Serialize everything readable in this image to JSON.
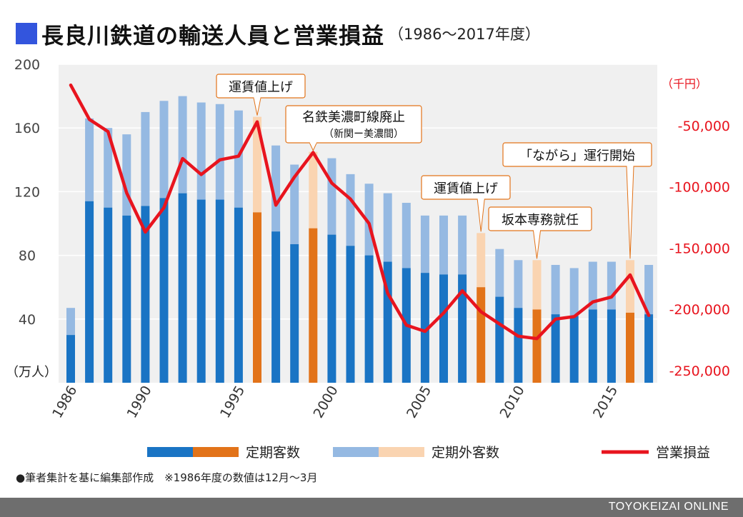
{
  "title": {
    "main": "長良川鉄道の輸送人員と営業損益",
    "sub": "（1986～2017年度）"
  },
  "chart_data": {
    "type": "bar",
    "x": [
      1986,
      1987,
      1988,
      1989,
      1990,
      1991,
      1992,
      1993,
      1994,
      1995,
      1996,
      1997,
      1998,
      1999,
      2000,
      2001,
      2002,
      2003,
      2004,
      2005,
      2006,
      2007,
      2008,
      2009,
      2010,
      2011,
      2012,
      2013,
      2014,
      2015,
      2016,
      2017
    ],
    "x_ticks": [
      "1986",
      "1990",
      "1995",
      "2000",
      "2005",
      "2010",
      "2015"
    ],
    "series": [
      {
        "name": "定期客数",
        "kind": "bar",
        "values": [
          30,
          114,
          110,
          105,
          111,
          116,
          119,
          115,
          115,
          110,
          107,
          95,
          87,
          97,
          93,
          86,
          80,
          76,
          72,
          69,
          68,
          68,
          60,
          54,
          47,
          46,
          43,
          42,
          46,
          46,
          44,
          43
        ]
      },
      {
        "name": "定期外客数",
        "kind": "bar",
        "values": [
          17,
          52,
          50,
          51,
          59,
          61,
          61,
          61,
          60,
          61,
          60,
          54,
          50,
          48,
          48,
          45,
          45,
          43,
          41,
          36,
          37,
          37,
          34,
          30,
          30,
          31,
          31,
          30,
          30,
          30,
          33,
          31
        ]
      },
      {
        "name": "営業損益",
        "kind": "line",
        "axis": "right",
        "values": [
          -17000,
          -45000,
          -55000,
          -105000,
          -137000,
          -117000,
          -77000,
          -90000,
          -78000,
          -75000,
          -47000,
          -115000,
          -92000,
          -72000,
          -97000,
          -110000,
          -130000,
          -187000,
          -213000,
          -218000,
          -203000,
          -185000,
          -202000,
          -212000,
          -222000,
          -224000,
          -208000,
          -206000,
          -194000,
          -190000,
          -172000,
          -205000
        ]
      }
    ],
    "highlight_years": [
      1996,
      1999,
      2008,
      2011,
      2016
    ],
    "colors": {
      "regular": "#1a74c4",
      "non_regular": "#95b9e2",
      "regular_highlight": "#e27319",
      "non_regular_highlight": "#fad4b1",
      "line": "#e8141e",
      "plot_background": "#f0f0f0",
      "annotation_border": "#e27319"
    },
    "y_left": {
      "ticks": [
        "200",
        "160",
        "120",
        "80",
        "40"
      ],
      "unit": "（万人）",
      "lim": [
        0,
        200
      ]
    },
    "y_right": {
      "ticks": [
        "-50,000",
        "-100,000",
        "-150,000",
        "-200,000",
        "-250,000"
      ],
      "unit": "（千円）",
      "lim": [
        -260000,
        0
      ]
    },
    "annotations": [
      {
        "lines": [
          "運賃値上げ"
        ],
        "year": 1996
      },
      {
        "lines": [
          "名鉄美濃町線廃止",
          "（新関ー美濃間）"
        ],
        "year": 1999
      },
      {
        "lines": [
          "運賃値上げ"
        ],
        "year": 2008
      },
      {
        "lines": [
          "坂本専務就任"
        ],
        "year": 2011
      },
      {
        "lines": [
          "「ながら」運行開始"
        ],
        "year": 2016
      }
    ],
    "legend": [
      "定期客数",
      "定期外客数",
      "営業損益"
    ]
  },
  "note": "●筆者集計を基に編集部作成　※1986年度の数値は12月～3月",
  "brand": "TOYOKEIZAI ONLINE"
}
